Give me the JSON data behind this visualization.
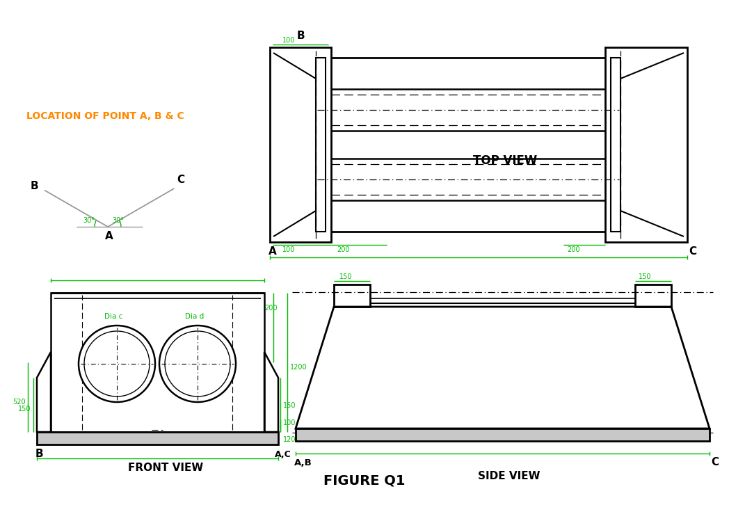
{
  "bg_color": "#ffffff",
  "line_color": "#000000",
  "green_color": "#00bb00",
  "orange_color": "#ff8800",
  "title": "FIGURE Q1",
  "label_location": "LOCATION OF POINT A, B & C",
  "top_view_label": "TOP VIEW",
  "front_view_label": "FRONT VIEW",
  "side_view_label": "SIDE VIEW"
}
